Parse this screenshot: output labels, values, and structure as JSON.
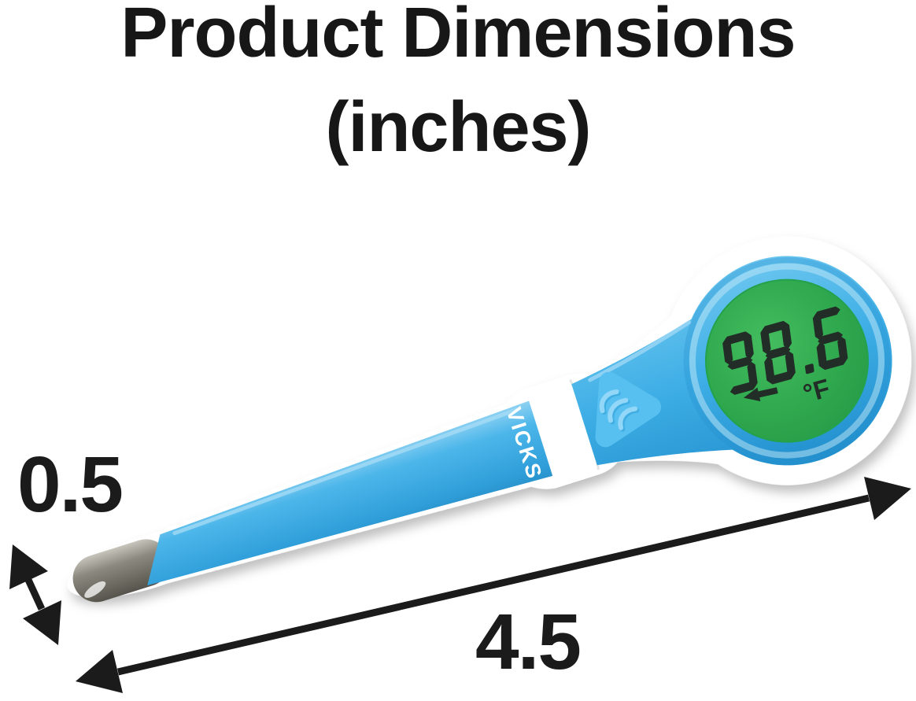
{
  "title": {
    "line1": "Product Dimensions",
    "line2": "(inches)"
  },
  "dimensions": {
    "unit": "inches",
    "length_label": "4.5",
    "width_label": "0.5"
  },
  "thermometer": {
    "brand": "VICKS",
    "display_value": "98.6",
    "display_unit": "°F",
    "lcd_indicator": "left-arrow"
  },
  "icons": {
    "button_logo": "vicks-wave-logo",
    "lcd_arrow": "left-arrow"
  },
  "colors": {
    "body_blue": "#3fafe6",
    "probe_blue": "#4cb6ea",
    "button_blue": "#57c0f0",
    "ring_blue": "#49b4e9",
    "display_green": "#2fa84e",
    "lcd_dark": "#212d26",
    "tip_gray": "#8b897f",
    "shell_white": "#ffffff",
    "arrow_black": "#1b1b1b",
    "text_black": "#171717"
  }
}
